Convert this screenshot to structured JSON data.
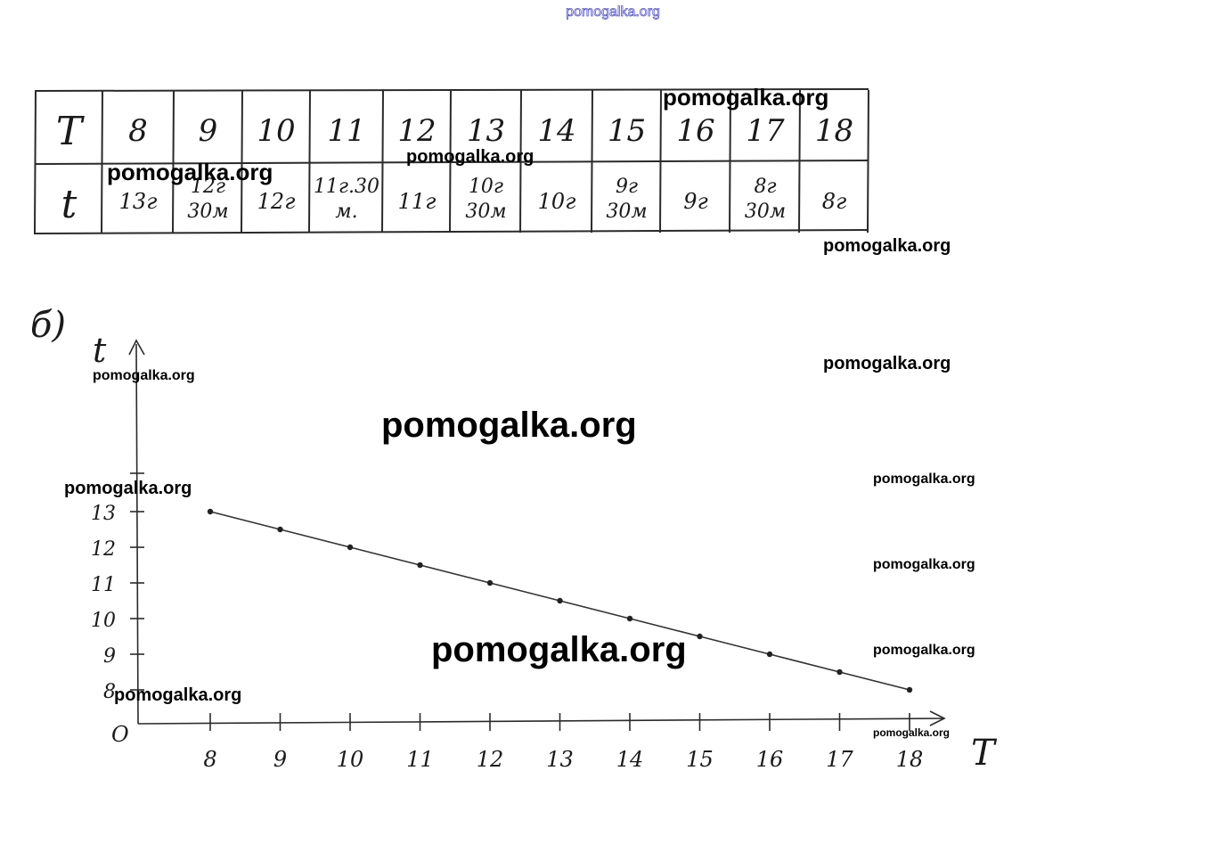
{
  "site_label_top": "pomogalka.org",
  "table": {
    "row1_header": "T",
    "row1_values": [
      "8",
      "9",
      "10",
      "11",
      "12",
      "13",
      "14",
      "15",
      "16",
      "17",
      "18"
    ],
    "row2_header": "t",
    "row2_values": [
      [
        "13г"
      ],
      [
        "12г",
        "30м"
      ],
      [
        "12г"
      ],
      [
        "11г.30",
        "м."
      ],
      [
        "11г"
      ],
      [
        "10г",
        "30м"
      ],
      [
        "10г"
      ],
      [
        "9г",
        "30м"
      ],
      [
        "9г"
      ],
      [
        "8г",
        "30м"
      ],
      [
        "8г"
      ]
    ]
  },
  "part_label": "б)",
  "chart_data": {
    "type": "line",
    "xlabel": "T",
    "ylabel": "t",
    "origin_label": "O",
    "x": [
      8,
      9,
      10,
      11,
      12,
      13,
      14,
      15,
      16,
      17,
      18
    ],
    "y": [
      13,
      12.5,
      12,
      11.5,
      11,
      10.5,
      10,
      9.5,
      9,
      8.5,
      8
    ],
    "x_ticks": [
      "8",
      "9",
      "10",
      "11",
      "12",
      "13",
      "14",
      "15",
      "16",
      "17",
      "18"
    ],
    "y_ticks": [
      "8",
      "9",
      "10",
      "11",
      "12",
      "13"
    ],
    "grid": false
  },
  "watermarks": [
    "pomogalka.org",
    "pomogalka.org",
    "pomogalka.org",
    "pomogalka.org",
    "pomogalka.org",
    "pomogalka.org",
    "pomogalka.org",
    "pomogalka.org",
    "pomogalka.org",
    "pomogalka.org",
    "pomogalka.org",
    "pomogalka.org",
    "pomogalka.org",
    "pomogalka.org"
  ]
}
